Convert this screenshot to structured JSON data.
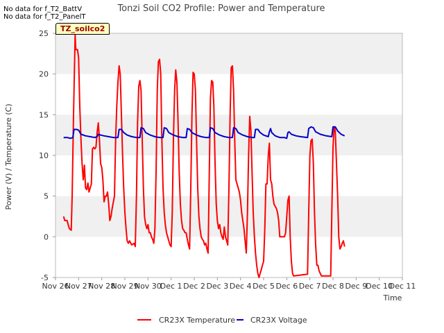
{
  "notes": [
    "No data for f_T2_BattV",
    "No data for f_T2_PanelT"
  ],
  "badge_label": "TZ_soilco2",
  "colors": {
    "temperature": "#ff0000",
    "voltage": "#0000cc",
    "band": "#f0f0f0"
  },
  "chart_data": {
    "type": "line",
    "title": "Tonzi Soil CO2 Profile: Power and Temperature",
    "xlabel": "Time",
    "ylabel": "Power (V) / Temperature (C)",
    "ylim": [
      -5,
      25
    ],
    "yticks": [
      -5,
      0,
      5,
      10,
      15,
      20,
      25
    ],
    "xlim": [
      0,
      15
    ],
    "xticks": [
      0,
      1,
      2,
      3,
      4,
      5,
      6,
      7,
      8,
      9,
      10,
      11,
      12,
      13,
      14,
      15
    ],
    "xtick_labels": [
      "Nov 26",
      "Nov 27",
      "Nov 28",
      "Nov 29",
      "Nov 30",
      "Dec 1",
      "Dec 2",
      "Dec 3",
      "Dec 4",
      "Dec 5",
      "Dec 6",
      "Dec 7",
      "Dec 8",
      "Dec 9",
      "Dec 10",
      "Dec 11"
    ],
    "grid": "horizontal bands",
    "legend_position": "bottom",
    "series": [
      {
        "name": "CR23X Temperature",
        "color": "#ff0000",
        "points": [
          [
            0.35,
            2.5
          ],
          [
            0.4,
            2.0
          ],
          [
            0.5,
            2.0
          ],
          [
            0.55,
            1.5
          ],
          [
            0.6,
            1.0
          ],
          [
            0.68,
            0.8
          ],
          [
            0.72,
            5.0
          ],
          [
            0.78,
            15.0
          ],
          [
            0.85,
            24.8
          ],
          [
            0.88,
            23.0
          ],
          [
            0.95,
            23.0
          ],
          [
            1.0,
            22.0
          ],
          [
            1.05,
            16.0
          ],
          [
            1.1,
            12.0
          ],
          [
            1.15,
            9.0
          ],
          [
            1.2,
            7.0
          ],
          [
            1.25,
            8.8
          ],
          [
            1.3,
            6.0
          ],
          [
            1.35,
            5.8
          ],
          [
            1.4,
            6.6
          ],
          [
            1.45,
            5.5
          ],
          [
            1.5,
            6.0
          ],
          [
            1.55,
            6.5
          ],
          [
            1.6,
            10.8
          ],
          [
            1.65,
            11.0
          ],
          [
            1.7,
            10.8
          ],
          [
            1.75,
            11.0
          ],
          [
            1.8,
            12.8
          ],
          [
            1.85,
            14.0
          ],
          [
            1.9,
            12.0
          ],
          [
            1.95,
            9.0
          ],
          [
            2.0,
            8.5
          ],
          [
            2.05,
            7.0
          ],
          [
            2.1,
            4.3
          ],
          [
            2.15,
            5.0
          ],
          [
            2.2,
            5.0
          ],
          [
            2.25,
            5.5
          ],
          [
            2.3,
            4.0
          ],
          [
            2.35,
            2.0
          ],
          [
            2.4,
            2.5
          ],
          [
            2.45,
            3.5
          ],
          [
            2.55,
            5.0
          ],
          [
            2.6,
            12.0
          ],
          [
            2.65,
            16.0
          ],
          [
            2.7,
            19.0
          ],
          [
            2.75,
            21.0
          ],
          [
            2.8,
            20.0
          ],
          [
            2.85,
            15.0
          ],
          [
            2.9,
            10.0
          ],
          [
            2.95,
            6.0
          ],
          [
            3.0,
            3.0
          ],
          [
            3.05,
            1.0
          ],
          [
            3.1,
            -0.5
          ],
          [
            3.15,
            -0.8
          ],
          [
            3.2,
            -0.5
          ],
          [
            3.3,
            -1.0
          ],
          [
            3.4,
            -0.8
          ],
          [
            3.45,
            -1.2
          ],
          [
            3.5,
            5.0
          ],
          [
            3.55,
            14.0
          ],
          [
            3.6,
            18.5
          ],
          [
            3.65,
            19.2
          ],
          [
            3.7,
            18.0
          ],
          [
            3.75,
            12.0
          ],
          [
            3.8,
            6.0
          ],
          [
            3.85,
            2.5
          ],
          [
            3.9,
            1.5
          ],
          [
            3.95,
            1.0
          ],
          [
            4.0,
            1.5
          ],
          [
            4.05,
            0.5
          ],
          [
            4.1,
            0.5
          ],
          [
            4.15,
            0.0
          ],
          [
            4.2,
            -0.3
          ],
          [
            4.25,
            -0.8
          ],
          [
            4.3,
            1.0
          ],
          [
            4.35,
            8.0
          ],
          [
            4.4,
            18.0
          ],
          [
            4.45,
            21.5
          ],
          [
            4.5,
            21.8
          ],
          [
            4.55,
            20.0
          ],
          [
            4.6,
            12.0
          ],
          [
            4.65,
            6.0
          ],
          [
            4.7,
            3.0
          ],
          [
            4.75,
            1.5
          ],
          [
            4.8,
            0.5
          ],
          [
            4.85,
            0.0
          ],
          [
            4.9,
            -0.5
          ],
          [
            4.95,
            -1.0
          ],
          [
            5.0,
            -1.2
          ],
          [
            5.05,
            3.0
          ],
          [
            5.1,
            12.0
          ],
          [
            5.15,
            18.0
          ],
          [
            5.2,
            20.5
          ],
          [
            5.25,
            19.0
          ],
          [
            5.3,
            14.0
          ],
          [
            5.35,
            8.0
          ],
          [
            5.4,
            4.0
          ],
          [
            5.45,
            2.0
          ],
          [
            5.5,
            1.0
          ],
          [
            5.55,
            0.8
          ],
          [
            5.6,
            0.5
          ],
          [
            5.65,
            0.5
          ],
          [
            5.7,
            -0.3
          ],
          [
            5.75,
            -1.0
          ],
          [
            5.8,
            -1.5
          ],
          [
            5.85,
            6.0
          ],
          [
            5.9,
            15.0
          ],
          [
            5.95,
            20.2
          ],
          [
            6.0,
            20.0
          ],
          [
            6.05,
            18.0
          ],
          [
            6.1,
            12.0
          ],
          [
            6.15,
            6.0
          ],
          [
            6.2,
            2.5
          ],
          [
            6.25,
            1.0
          ],
          [
            6.3,
            0.0
          ],
          [
            6.35,
            -0.3
          ],
          [
            6.4,
            -0.5
          ],
          [
            6.45,
            -1.0
          ],
          [
            6.5,
            -0.8
          ],
          [
            6.55,
            -1.5
          ],
          [
            6.6,
            -2.0
          ],
          [
            6.65,
            8.0
          ],
          [
            6.7,
            17.0
          ],
          [
            6.75,
            19.2
          ],
          [
            6.8,
            19.0
          ],
          [
            6.85,
            16.0
          ],
          [
            6.9,
            9.0
          ],
          [
            6.95,
            4.0
          ],
          [
            7.0,
            2.0
          ],
          [
            7.05,
            1.0
          ],
          [
            7.1,
            1.5
          ],
          [
            7.15,
            0.5
          ],
          [
            7.2,
            0.0
          ],
          [
            7.25,
            -0.3
          ],
          [
            7.3,
            1.2
          ],
          [
            7.35,
            0.0
          ],
          [
            7.4,
            -0.5
          ],
          [
            7.45,
            -1.0
          ],
          [
            7.5,
            6.0
          ],
          [
            7.55,
            15.0
          ],
          [
            7.6,
            20.8
          ],
          [
            7.65,
            21.0
          ],
          [
            7.7,
            18.0
          ],
          [
            7.75,
            12.0
          ],
          [
            7.8,
            7.0
          ],
          [
            7.85,
            6.5
          ],
          [
            7.9,
            6.0
          ],
          [
            7.95,
            5.5
          ],
          [
            8.0,
            4.5
          ],
          [
            8.05,
            3.0
          ],
          [
            8.1,
            2.0
          ],
          [
            8.15,
            1.0
          ],
          [
            8.2,
            -0.5
          ],
          [
            8.25,
            -2.0
          ],
          [
            8.3,
            3.0
          ],
          [
            8.35,
            10.0
          ],
          [
            8.4,
            14.8
          ],
          [
            8.45,
            13.0
          ],
          [
            8.5,
            8.0
          ],
          [
            8.55,
            3.0
          ],
          [
            8.6,
            0.0
          ],
          [
            8.65,
            -2.0
          ],
          [
            8.7,
            -3.5
          ],
          [
            8.75,
            -4.5
          ],
          [
            8.8,
            -5.0
          ],
          [
            8.85,
            -4.5
          ],
          [
            8.9,
            -4.0
          ],
          [
            8.95,
            -3.5
          ],
          [
            9.0,
            -3.0
          ],
          [
            9.05,
            1.0
          ],
          [
            9.1,
            6.5
          ],
          [
            9.15,
            6.5
          ],
          [
            9.2,
            10.0
          ],
          [
            9.25,
            11.5
          ],
          [
            9.3,
            7.0
          ],
          [
            9.35,
            6.5
          ],
          [
            9.4,
            5.0
          ],
          [
            9.45,
            4.0
          ],
          [
            9.55,
            3.5
          ],
          [
            9.6,
            3.0
          ],
          [
            9.65,
            2.0
          ],
          [
            9.7,
            0.0
          ],
          [
            9.9,
            0.0
          ],
          [
            9.95,
            0.5
          ],
          [
            10.05,
            4.5
          ],
          [
            10.1,
            5.0
          ],
          [
            10.15,
            0.0
          ],
          [
            10.2,
            -3.0
          ],
          [
            10.25,
            -4.5
          ],
          [
            10.3,
            -4.8
          ],
          [
            10.9,
            -4.6
          ],
          [
            10.95,
            3.0
          ],
          [
            11.0,
            10.0
          ],
          [
            11.05,
            11.8
          ],
          [
            11.1,
            12.0
          ],
          [
            11.15,
            9.0
          ],
          [
            11.2,
            3.0
          ],
          [
            11.25,
            -1.0
          ],
          [
            11.3,
            -3.5
          ],
          [
            11.35,
            -3.5
          ],
          [
            11.4,
            -4.2
          ],
          [
            11.5,
            -4.8
          ],
          [
            11.9,
            -4.8
          ],
          [
            11.95,
            3.0
          ],
          [
            12.0,
            11.0
          ],
          [
            12.05,
            13.5
          ],
          [
            12.1,
            13.0
          ],
          [
            12.15,
            9.0
          ],
          [
            12.2,
            5.0
          ],
          [
            12.25,
            0.0
          ],
          [
            12.3,
            -1.5
          ],
          [
            12.35,
            -1.2
          ],
          [
            12.4,
            -0.8
          ],
          [
            12.45,
            -0.5
          ],
          [
            12.5,
            -1.2
          ]
        ]
      },
      {
        "name": "CR23X Voltage",
        "color": "#0000cc",
        "points": [
          [
            0.35,
            12.2
          ],
          [
            0.5,
            12.2
          ],
          [
            0.65,
            12.1
          ],
          [
            0.75,
            12.2
          ],
          [
            0.8,
            13.2
          ],
          [
            0.9,
            13.2
          ],
          [
            1.0,
            13.1
          ],
          [
            1.1,
            12.6
          ],
          [
            1.3,
            12.4
          ],
          [
            1.5,
            12.3
          ],
          [
            1.7,
            12.2
          ],
          [
            1.8,
            12.3
          ],
          [
            1.85,
            12.6
          ],
          [
            1.95,
            12.5
          ],
          [
            2.1,
            12.4
          ],
          [
            2.3,
            12.3
          ],
          [
            2.5,
            12.2
          ],
          [
            2.7,
            12.2
          ],
          [
            2.75,
            13.2
          ],
          [
            2.85,
            13.2
          ],
          [
            2.95,
            12.8
          ],
          [
            3.1,
            12.5
          ],
          [
            3.3,
            12.3
          ],
          [
            3.5,
            12.2
          ],
          [
            3.65,
            12.2
          ],
          [
            3.7,
            13.4
          ],
          [
            3.8,
            13.3
          ],
          [
            3.9,
            12.8
          ],
          [
            4.1,
            12.5
          ],
          [
            4.3,
            12.3
          ],
          [
            4.5,
            12.2
          ],
          [
            4.65,
            12.2
          ],
          [
            4.7,
            13.4
          ],
          [
            4.8,
            13.3
          ],
          [
            4.9,
            12.8
          ],
          [
            5.1,
            12.5
          ],
          [
            5.3,
            12.3
          ],
          [
            5.5,
            12.2
          ],
          [
            5.65,
            12.2
          ],
          [
            5.7,
            13.3
          ],
          [
            5.8,
            13.2
          ],
          [
            5.9,
            12.8
          ],
          [
            6.1,
            12.5
          ],
          [
            6.3,
            12.3
          ],
          [
            6.5,
            12.2
          ],
          [
            6.65,
            12.2
          ],
          [
            6.7,
            13.4
          ],
          [
            6.8,
            13.3
          ],
          [
            6.9,
            12.8
          ],
          [
            7.1,
            12.5
          ],
          [
            7.3,
            12.3
          ],
          [
            7.5,
            12.2
          ],
          [
            7.65,
            12.2
          ],
          [
            7.7,
            13.4
          ],
          [
            7.8,
            13.3
          ],
          [
            7.9,
            12.8
          ],
          [
            8.1,
            12.5
          ],
          [
            8.3,
            12.3
          ],
          [
            8.5,
            12.2
          ],
          [
            8.6,
            12.2
          ],
          [
            8.65,
            13.2
          ],
          [
            8.75,
            13.2
          ],
          [
            8.85,
            12.8
          ],
          [
            9.0,
            12.5
          ],
          [
            9.2,
            12.3
          ],
          [
            9.25,
            12.9
          ],
          [
            9.3,
            13.3
          ],
          [
            9.35,
            12.8
          ],
          [
            9.5,
            12.4
          ],
          [
            9.7,
            12.2
          ],
          [
            9.9,
            12.2
          ],
          [
            10.0,
            12.1
          ],
          [
            10.05,
            12.8
          ],
          [
            10.1,
            12.9
          ],
          [
            10.2,
            12.6
          ],
          [
            10.4,
            12.4
          ],
          [
            10.6,
            12.3
          ],
          [
            10.9,
            12.2
          ],
          [
            10.95,
            13.3
          ],
          [
            11.05,
            13.5
          ],
          [
            11.15,
            13.4
          ],
          [
            11.25,
            12.9
          ],
          [
            11.45,
            12.6
          ],
          [
            11.7,
            12.4
          ],
          [
            11.95,
            12.3
          ],
          [
            12.0,
            13.5
          ],
          [
            12.1,
            13.5
          ],
          [
            12.2,
            13.0
          ],
          [
            12.35,
            12.6
          ],
          [
            12.5,
            12.4
          ]
        ]
      }
    ]
  }
}
